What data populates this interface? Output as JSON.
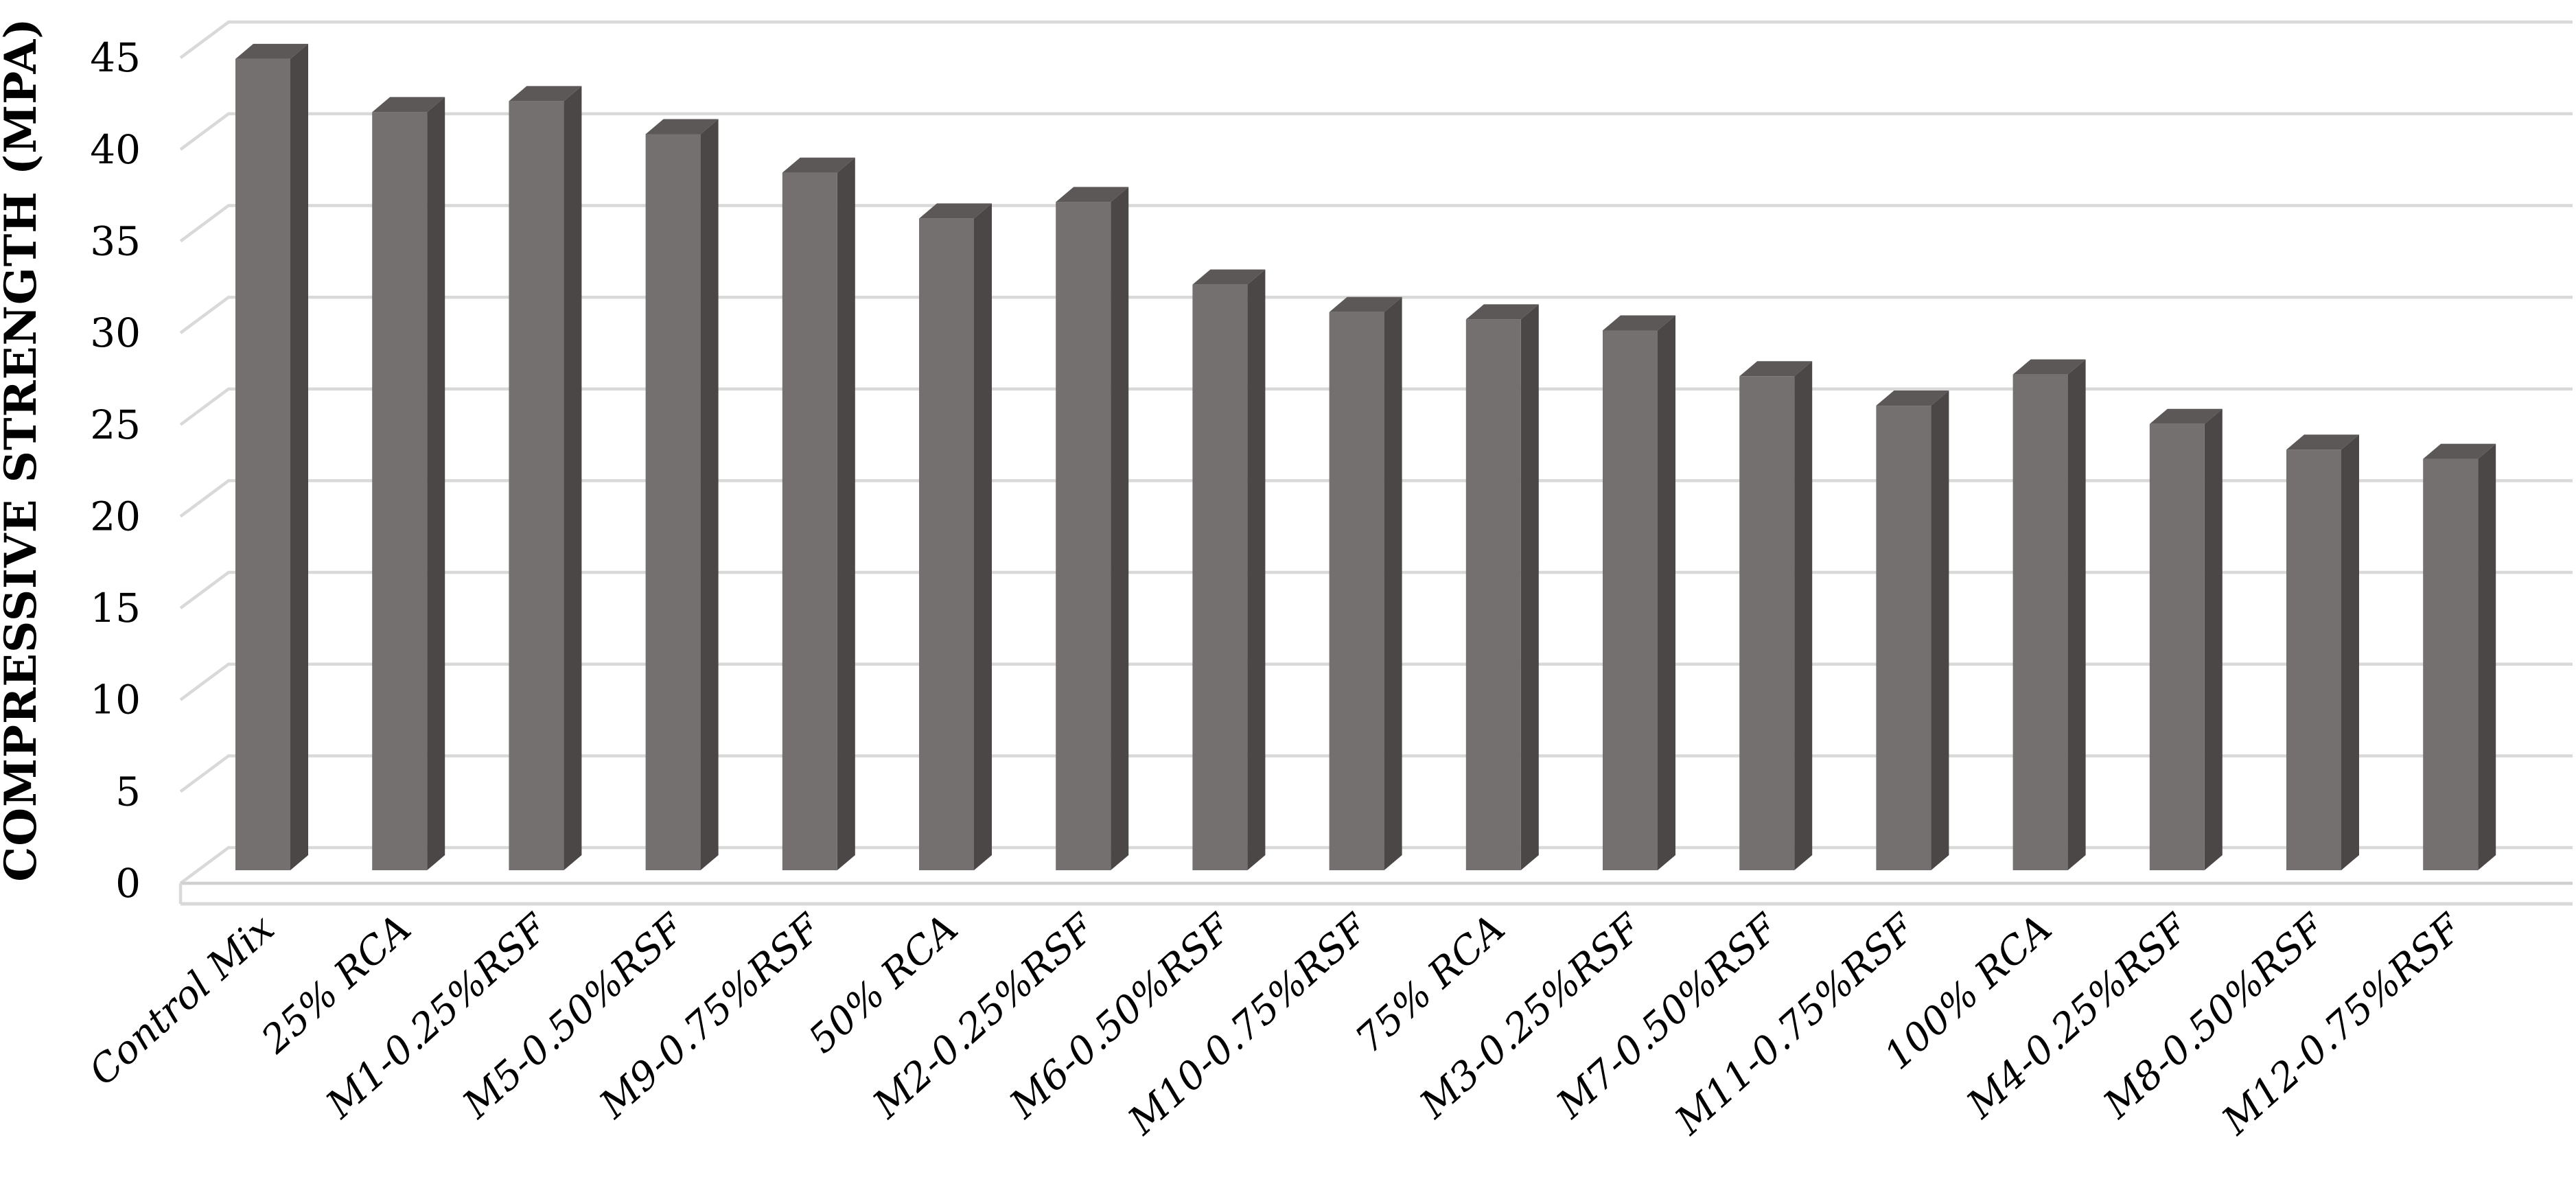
{
  "chart_data": {
    "type": "bar",
    "title": "",
    "xlabel": "",
    "ylabel": "COMPRESSIVE STRENGTH (MPA)",
    "categories": [
      "Control Mix",
      "25% RCA",
      "M1-0.25%RSF",
      "M5-0.50%RSF",
      "M9-0.75%RSF",
      "50% RCA",
      "M2-0.25%RSF",
      "M6-0.50%RSF",
      "M10-0.75%RSF",
      "75% RCA",
      "M3-0.25%RSF",
      "M7-0.50%RSF",
      "M11-0.75%RSF",
      "100% RCA",
      "M4-0.25%RSF",
      "M8-0.50%RSF",
      "M12-0.75%RSF"
    ],
    "values": [
      44.3,
      41.4,
      42.0,
      40.2,
      38.1,
      35.6,
      36.5,
      32.0,
      30.5,
      30.1,
      29.5,
      27.0,
      25.4,
      27.1,
      24.4,
      23.0,
      22.5
    ],
    "unit": "MPa",
    "ylim": [
      0,
      45
    ],
    "yticks": [
      0,
      5,
      10,
      15,
      20,
      25,
      30,
      35,
      40,
      45
    ],
    "grid": true,
    "legend_position": "none",
    "effect": "3d-column",
    "colors": {
      "bar_front": "#757070",
      "bar_top": "#5d5858",
      "bar_side": "#4b4746",
      "gridline": "#d9d9d9",
      "floor_line": "#d2d0cf",
      "text": "#000000",
      "background": "#ffffff"
    }
  }
}
